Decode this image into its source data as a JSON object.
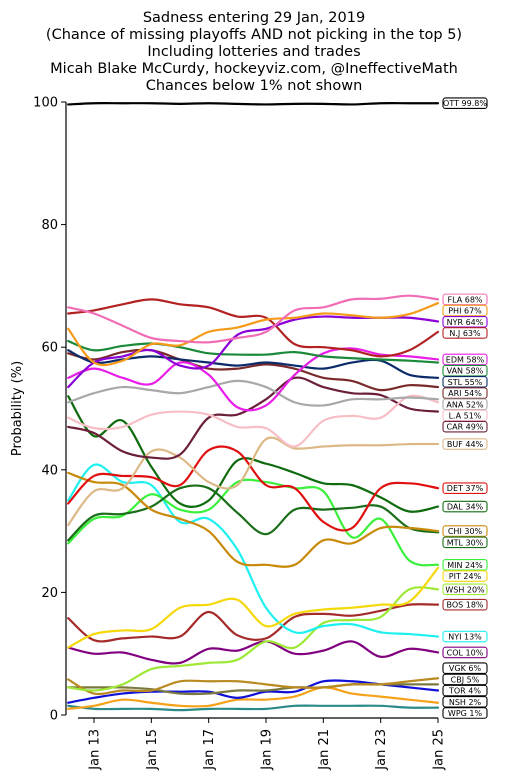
{
  "chart_data": {
    "type": "line",
    "title_lines": [
      "Sadness entering 29 Jan, 2019",
      "(Chance of missing playoffs AND not picking in the top 5)",
      "Including lotteries and trades",
      "Micah Blake McCurdy, hockeyviz.com, @IneffectiveMath",
      "Chances below 1% not shown"
    ],
    "ylabel": "Probability (%)",
    "xlabel": "",
    "ylim": [
      0,
      100
    ],
    "yticks": [
      0,
      20,
      40,
      60,
      80,
      100
    ],
    "x_days": [
      12,
      13,
      14,
      15,
      16,
      17,
      18,
      19,
      20,
      21,
      22,
      23,
      24,
      25
    ],
    "xticks": [
      {
        "day": 13,
        "label": "Jan 13"
      },
      {
        "day": 15,
        "label": "Jan 15"
      },
      {
        "day": 17,
        "label": "Jan 17"
      },
      {
        "day": 19,
        "label": "Jan 19"
      },
      {
        "day": 21,
        "label": "Jan 21"
      },
      {
        "day": 23,
        "label": "Jan 23"
      },
      {
        "day": 25,
        "label": "Jan 25"
      }
    ],
    "series": [
      {
        "team": "OTT",
        "label": "OTT 99.8%",
        "color": "#000000",
        "border": "#000000",
        "values": [
          99.6,
          99.8,
          99.8,
          99.8,
          99.7,
          99.8,
          99.7,
          99.6,
          99.7,
          99.7,
          99.6,
          99.8,
          99.8,
          99.8
        ]
      },
      {
        "team": "FLA",
        "label": "FLA 68%",
        "color": "#f06db5",
        "border": "#f06db5",
        "values": [
          66.5,
          65.5,
          63.5,
          61.5,
          61.0,
          60.8,
          61.5,
          62.5,
          66.0,
          66.5,
          67.8,
          67.9,
          68.4,
          67.8
        ]
      },
      {
        "team": "PHI",
        "label": "PHI 67%",
        "color": "#f59a18",
        "border": "#f59a18",
        "values": [
          63.0,
          57.5,
          57.8,
          60.5,
          60.3,
          62.5,
          63.2,
          64.5,
          64.8,
          65.5,
          65.2,
          64.8,
          65.4,
          67.2
        ]
      },
      {
        "team": "NYR",
        "label": "NYR 64%",
        "color": "#8b00d6",
        "border": "#8b00d6",
        "values": [
          53.5,
          57.5,
          58.5,
          59.5,
          57.0,
          57.0,
          62.0,
          63.0,
          64.5,
          65.0,
          64.8,
          64.8,
          64.8,
          64.2
        ]
      },
      {
        "team": "NJ",
        "label": "N.J 63%",
        "color": "#b22222",
        "border": "#b22222",
        "values": [
          65.5,
          66.0,
          67.0,
          67.8,
          67.0,
          66.5,
          65.0,
          64.8,
          60.5,
          60.0,
          59.5,
          58.5,
          59.5,
          62.5
        ]
      },
      {
        "team": "VAN",
        "label": "VAN 58%",
        "color": "#1a8a3a",
        "border": "#1a8a3a",
        "values": [
          61.0,
          59.5,
          60.2,
          60.6,
          60.0,
          59.0,
          58.8,
          58.8,
          59.2,
          58.5,
          58.2,
          58.0,
          57.8,
          57.5
        ]
      },
      {
        "team": "EDM",
        "label": "EDM 58%",
        "color": "#e81ee8",
        "border": "#e81ee8",
        "values": [
          55.0,
          56.5,
          55.0,
          54.0,
          57.5,
          55.5,
          50.2,
          50.5,
          55.5,
          59.0,
          59.8,
          58.8,
          58.5,
          58.0
        ]
      },
      {
        "team": "STL",
        "label": "STL 55%",
        "color": "#0a2a6a",
        "border": "#0a2a6a",
        "values": [
          59.5,
          57.5,
          58.0,
          58.5,
          58.0,
          57.5,
          57.0,
          57.5,
          57.0,
          56.5,
          57.5,
          57.8,
          55.5,
          55.0
        ]
      },
      {
        "team": "ARI",
        "label": "ARI 54%",
        "color": "#7a2a2a",
        "border": "#7a2a2a",
        "values": [
          59.0,
          58.0,
          59.2,
          59.5,
          58.0,
          56.5,
          56.5,
          57.2,
          56.5,
          55.0,
          54.5,
          53.0,
          53.8,
          53.5
        ]
      },
      {
        "team": "ANA",
        "label": "ANA 52%",
        "color": "#a8a8a8",
        "border": "#a8a8a8",
        "values": [
          51.0,
          52.5,
          53.5,
          53.0,
          52.5,
          53.5,
          54.5,
          53.5,
          51.0,
          50.5,
          51.5,
          51.5,
          51.8,
          51.5
        ]
      },
      {
        "team": "LA",
        "label": "L.A 51%",
        "color": "#f7bfc5",
        "border": "#f7bfc5",
        "values": [
          48.5,
          46.8,
          47.0,
          49.0,
          49.5,
          49.0,
          47.0,
          46.8,
          43.8,
          48.0,
          48.8,
          48.5,
          52.0,
          51.0
        ]
      },
      {
        "team": "CAR",
        "label": "CAR 49%",
        "color": "#6b1e3a",
        "border": "#6b1e3a",
        "values": [
          47.0,
          46.0,
          43.0,
          42.0,
          42.5,
          48.5,
          49.0,
          51.5,
          55.0,
          53.5,
          52.5,
          52.2,
          50.0,
          49.5
        ]
      },
      {
        "team": "BUF",
        "label": "BUF 44%",
        "color": "#ddb887",
        "border": "#ddb887",
        "values": [
          31.0,
          36.5,
          37.0,
          43.0,
          42.0,
          38.0,
          37.5,
          45.0,
          43.5,
          43.8,
          44.0,
          44.0,
          44.2,
          44.2
        ]
      },
      {
        "team": "DET",
        "label": "DET 37%",
        "color": "#e01010",
        "border": "#e01010",
        "values": [
          34.5,
          39.0,
          39.0,
          38.8,
          37.5,
          43.2,
          43.0,
          37.5,
          37.0,
          31.5,
          30.5,
          37.0,
          37.8,
          37.0
        ]
      },
      {
        "team": "DAL",
        "label": "DAL 34%",
        "color": "#0e6b0e",
        "border": "#0e6b0e",
        "values": [
          52.0,
          45.5,
          48.0,
          40.5,
          34.5,
          35.0,
          41.5,
          41.0,
          39.5,
          37.8,
          37.5,
          35.5,
          33.2,
          34.0
        ]
      },
      {
        "team": "CHI",
        "label": "CHI 30%",
        "color": "#c88a0a",
        "border": "#c88a0a",
        "values": [
          39.5,
          38.0,
          37.5,
          33.5,
          32.0,
          30.0,
          25.0,
          24.5,
          24.5,
          28.5,
          28.0,
          30.5,
          30.5,
          30.0
        ]
      },
      {
        "team": "MTL",
        "label": "MTL 30%",
        "color": "#1a6e1a",
        "border": "#1a6e1a",
        "values": [
          28.5,
          32.5,
          32.8,
          34.0,
          37.0,
          37.0,
          33.0,
          29.5,
          33.5,
          33.5,
          33.8,
          34.0,
          30.5,
          29.8
        ]
      },
      {
        "team": "MIN",
        "label": "MIN 24%",
        "color": "#3af03a",
        "border": "#3af03a",
        "values": [
          28.0,
          32.0,
          32.5,
          36.0,
          33.5,
          33.5,
          38.0,
          38.0,
          37.0,
          36.5,
          29.0,
          32.0,
          25.2,
          24.5
        ]
      },
      {
        "team": "PIT",
        "label": "PIT 24%",
        "color": "#f5d80a",
        "border": "#f5d80a",
        "values": [
          11.0,
          13.2,
          13.8,
          14.0,
          17.5,
          18.0,
          18.8,
          14.5,
          16.5,
          17.2,
          17.5,
          18.0,
          18.5,
          24.0
        ]
      },
      {
        "team": "NYI",
        "label": "NYI 13%",
        "color": "#1ef0f0",
        "border": "#1ef0f0",
        "values": [
          35.0,
          40.8,
          38.0,
          37.5,
          31.5,
          32.0,
          27.0,
          17.5,
          13.5,
          14.5,
          14.8,
          13.5,
          13.2,
          12.8
        ]
      },
      {
        "team": "WSH",
        "label": "WSH 20%",
        "color": "#9ee836",
        "border": "#9ee836",
        "values": [
          4.5,
          4.0,
          5.0,
          7.5,
          8.0,
          8.5,
          9.0,
          12.0,
          11.0,
          15.0,
          15.5,
          16.0,
          20.5,
          20.5
        ]
      },
      {
        "team": "BOS",
        "label": "BOS 18%",
        "color": "#a52a2a",
        "border": "#a52a2a",
        "values": [
          15.8,
          12.2,
          12.5,
          12.8,
          12.8,
          16.8,
          13.0,
          12.5,
          16.0,
          16.5,
          16.2,
          17.0,
          18.0,
          18.0
        ]
      },
      {
        "team": "COL",
        "label": "COL 10%",
        "color": "#800080",
        "border": "#800080",
        "values": [
          11.0,
          10.0,
          10.2,
          9.0,
          8.5,
          10.8,
          10.5,
          12.0,
          10.0,
          10.5,
          12.0,
          9.5,
          10.8,
          10.2
        ]
      },
      {
        "team": "VGK",
        "label": "VGK  6%",
        "color": "#b88a20",
        "border": "#000000",
        "values": [
          5.8,
          3.5,
          4.0,
          4.0,
          5.5,
          5.5,
          5.5,
          5.0,
          4.5,
          4.5,
          5.0,
          5.0,
          5.5,
          6.0
        ]
      },
      {
        "team": "CBJ",
        "label": "CBJ  5%",
        "color": "#7a7a40",
        "border": "#000000",
        "values": [
          4.5,
          4.5,
          4.5,
          4.2,
          3.5,
          3.5,
          4.0,
          4.0,
          4.5,
          4.5,
          5.0,
          5.0,
          5.0,
          5.0
        ]
      },
      {
        "team": "TOR",
        "label": "TOR  4%",
        "color": "#1010d8",
        "border": "#000000",
        "values": [
          2.0,
          2.8,
          3.5,
          3.8,
          3.8,
          3.8,
          2.8,
          3.8,
          3.8,
          5.5,
          5.5,
          5.0,
          4.5,
          4.0
        ]
      },
      {
        "team": "NSH",
        "label": "NSH  2%",
        "color": "#f5a21a",
        "border": "#000000",
        "values": [
          1.0,
          1.5,
          2.5,
          2.0,
          1.5,
          1.5,
          2.5,
          2.5,
          3.0,
          4.5,
          3.5,
          3.0,
          2.5,
          2.0
        ]
      },
      {
        "team": "WPG",
        "label": "WPG  1%",
        "color": "#2a8a8a",
        "border": "#000000",
        "values": [
          1.5,
          1.0,
          1.0,
          1.0,
          0.8,
          1.0,
          1.0,
          1.0,
          1.5,
          1.5,
          1.5,
          1.5,
          1.2,
          1.2
        ]
      }
    ]
  }
}
